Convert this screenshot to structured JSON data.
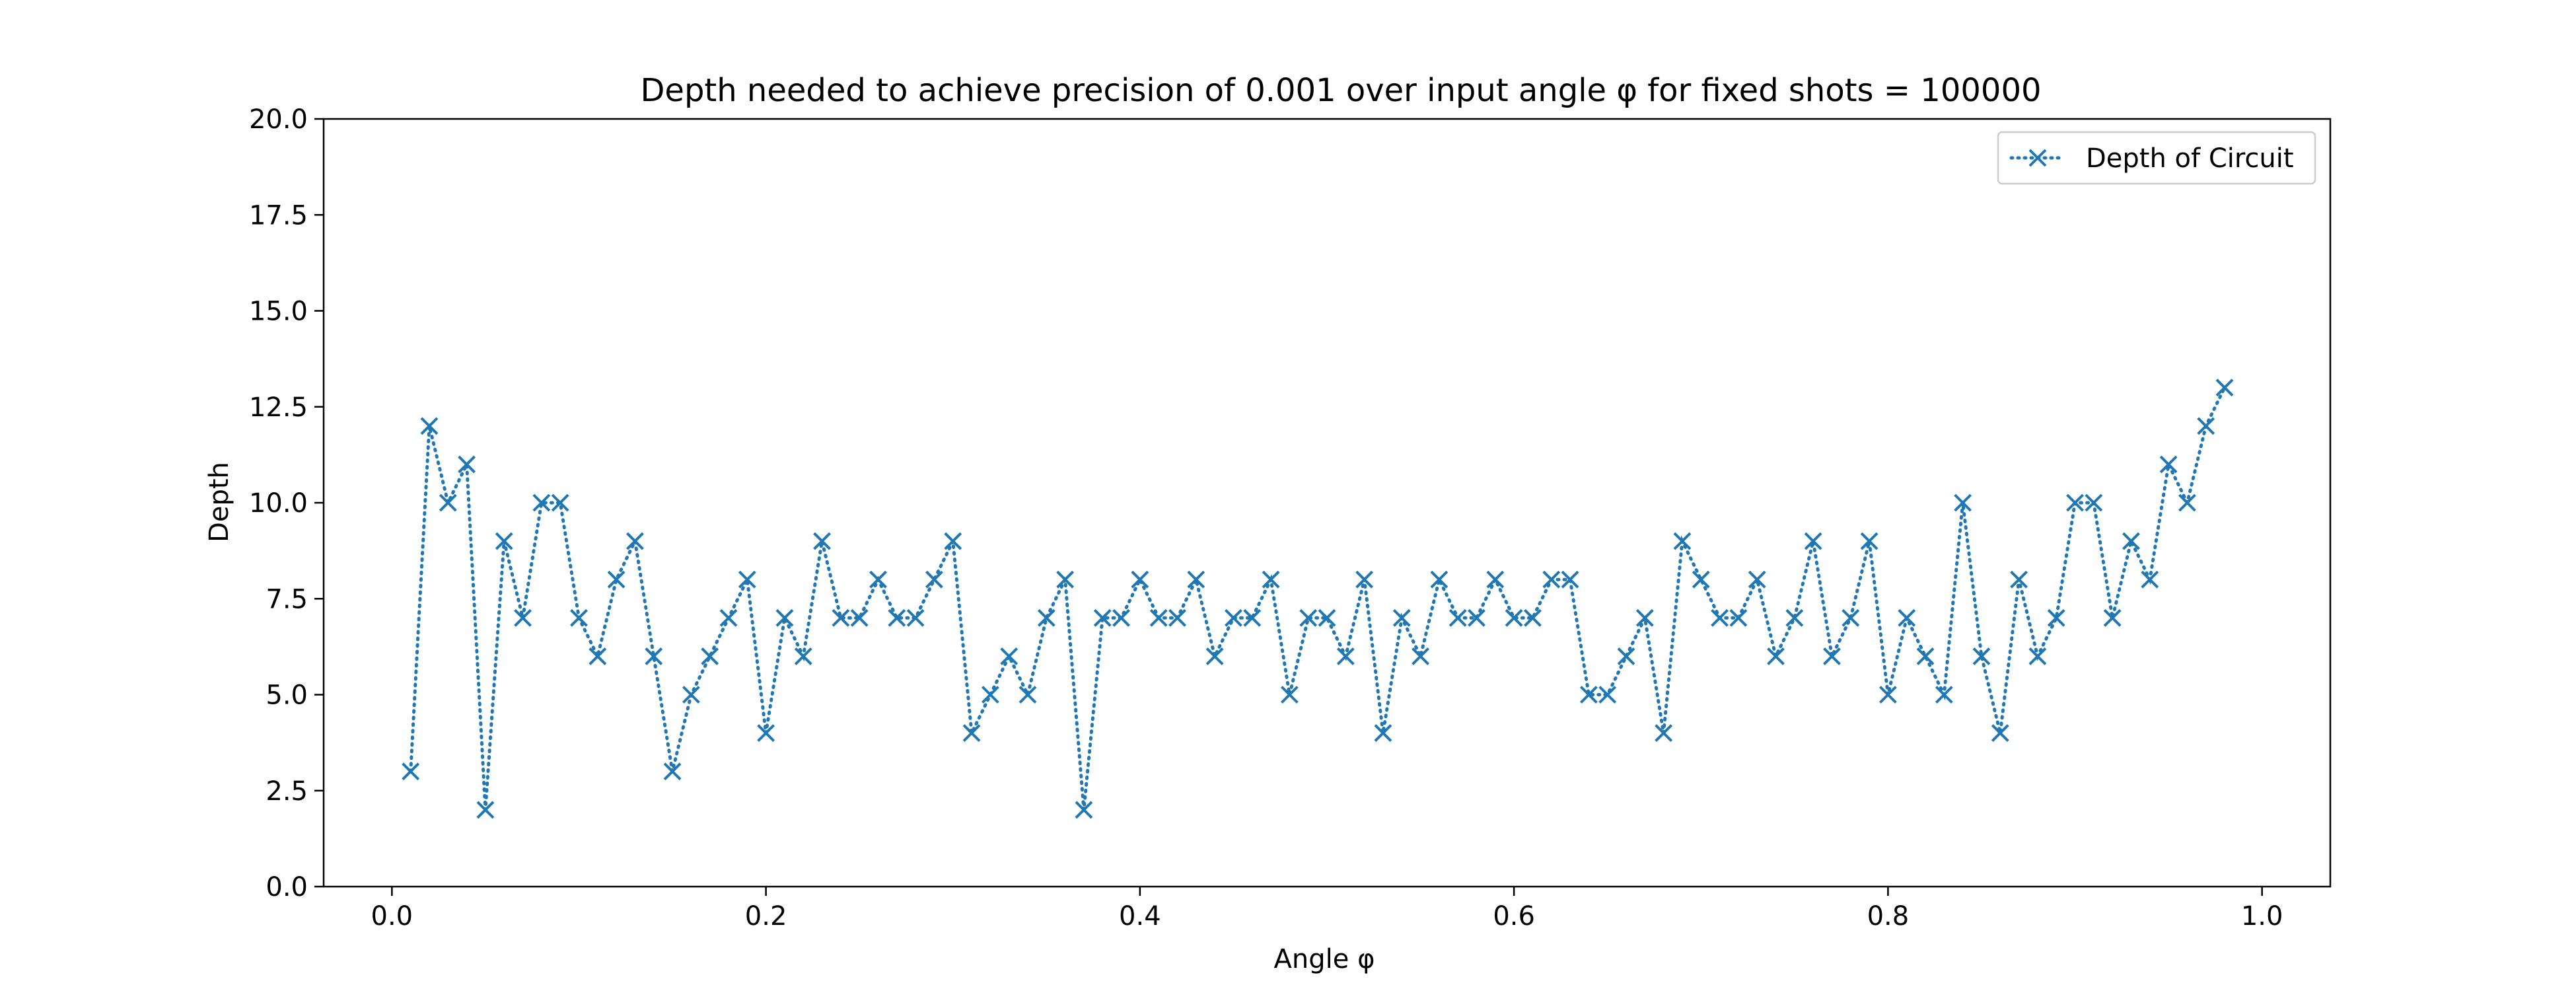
{
  "chart_data": {
    "type": "line",
    "title": "Depth needed to achieve precision of 0.001 over input angle φ for fixed shots = 100000",
    "xlabel": "Angle φ",
    "ylabel": "Depth",
    "xlim": [
      -0.0365,
      1.0365
    ],
    "ylim": [
      0,
      20
    ],
    "xticks": [
      0.0,
      0.2,
      0.4,
      0.6,
      0.8,
      1.0
    ],
    "xtick_labels": [
      "0.0",
      "0.2",
      "0.4",
      "0.6",
      "0.8",
      "1.0"
    ],
    "yticks": [
      0.0,
      2.5,
      5.0,
      7.5,
      10.0,
      12.5,
      15.0,
      17.5,
      20.0
    ],
    "ytick_labels": [
      "0.0",
      "2.5",
      "5.0",
      "7.5",
      "10.0",
      "12.5",
      "15.0",
      "17.5",
      "20.0"
    ],
    "grid": false,
    "legend_position": "top-right",
    "series": [
      {
        "name": "Depth of Circuit",
        "color": "#1f77b4",
        "line_style": "dotted",
        "marker": "x",
        "x_start": 0.01,
        "x_step": 0.01,
        "values": [
          3,
          12,
          10,
          11,
          2,
          9,
          7,
          10,
          10,
          7,
          6,
          8,
          9,
          6,
          3,
          5,
          6,
          7,
          8,
          4,
          7,
          6,
          9,
          7,
          7,
          8,
          7,
          7,
          8,
          9,
          4,
          5,
          6,
          5,
          7,
          8,
          2,
          7,
          7,
          8,
          7,
          7,
          8,
          6,
          7,
          7,
          8,
          5,
          7,
          7,
          6,
          8,
          4,
          7,
          6,
          8,
          7,
          7,
          8,
          7,
          7,
          8,
          8,
          5,
          5,
          6,
          7,
          4,
          9,
          8,
          7,
          7,
          8,
          6,
          7,
          9,
          6,
          7,
          9,
          5,
          7,
          6,
          5,
          10,
          6,
          4,
          8,
          6,
          7,
          10,
          10,
          7,
          9,
          8,
          11,
          10,
          12,
          13
        ]
      }
    ]
  }
}
